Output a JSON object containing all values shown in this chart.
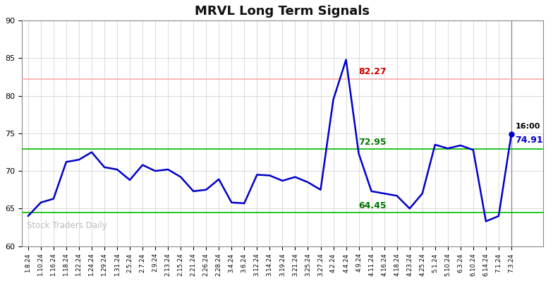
{
  "title": "MRVL Long Term Signals",
  "watermark": "Stock Traders Daily",
  "ylim": [
    60,
    90
  ],
  "yticks": [
    60,
    65,
    70,
    75,
    80,
    85,
    90
  ],
  "hline_red": 82.27,
  "hline_green_upper": 72.95,
  "hline_green_lower": 64.45,
  "last_label": "16:00",
  "last_value": 74.91,
  "label_82_27": "82.27",
  "label_72_95": "72.95",
  "label_64_45": "64.45",
  "x_labels": [
    "1.8.24",
    "1.10.24",
    "1.16.24",
    "1.18.24",
    "1.22.24",
    "1.24.24",
    "1.29.24",
    "1.31.24",
    "2.5.24",
    "2.7.24",
    "2.9.24",
    "2.13.24",
    "2.15.24",
    "2.21.24",
    "2.26.24",
    "2.28.24",
    "3.4.24",
    "3.6.24",
    "3.12.24",
    "3.14.24",
    "3.19.24",
    "3.21.24",
    "3.25.24",
    "3.27.24",
    "4.2.24",
    "4.4.24",
    "4.9.24",
    "4.11.24",
    "4.16.24",
    "4.18.24",
    "4.23.24",
    "4.25.24",
    "5.1.24",
    "5.10.24",
    "6.3.24",
    "6.10.24",
    "6.14.24",
    "7.1.24",
    "7.3.24"
  ],
  "y_values": [
    64.0,
    65.8,
    66.3,
    71.2,
    71.5,
    72.5,
    70.5,
    70.2,
    68.8,
    70.8,
    70.0,
    70.2,
    69.2,
    67.3,
    67.5,
    68.9,
    65.8,
    65.7,
    69.5,
    69.4,
    68.7,
    69.2,
    68.5,
    67.5,
    79.5,
    84.8,
    72.3,
    67.3,
    67.0,
    66.7,
    65.0,
    67.0,
    73.5,
    73.0,
    73.4,
    72.8,
    63.3,
    64.0,
    74.91
  ],
  "line_color": "#0000cc",
  "red_line_color": "#ffaaaa",
  "green_line_color": "#00bb00",
  "text_red_color": "#cc0000",
  "text_green_color": "#007700",
  "background_color": "#ffffff",
  "grid_color": "#cccccc",
  "label_82_27_xidx": 26,
  "label_72_95_xidx": 26,
  "label_64_45_xidx": 26,
  "figsize": [
    7.84,
    3.98
  ],
  "dpi": 100
}
